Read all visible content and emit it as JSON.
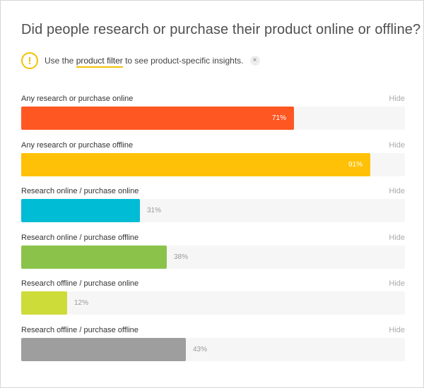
{
  "title": "Did people research or purchase their product online or offline?",
  "notice": {
    "prefix": "Use the",
    "link": "product filter",
    "suffix": "to see product-specific insights.",
    "icon": "warning-circle-icon",
    "close_icon": "close-icon",
    "close_glyph": "×"
  },
  "hide_label": "Hide",
  "chart_data": {
    "type": "bar",
    "orientation": "horizontal",
    "title": "Did people research or purchase their product online or offline?",
    "unit": "%",
    "xlim": [
      0,
      100
    ],
    "categories": [
      "Any research or purchase online",
      "Any research or purchase offline",
      "Research online / purchase online",
      "Research online / purchase offline",
      "Research offline / purchase online",
      "Research offline / purchase offline"
    ],
    "values": [
      71,
      91,
      31,
      38,
      12,
      43
    ],
    "labels": [
      "71%",
      "91%",
      "31%",
      "38%",
      "12%",
      "43%"
    ],
    "colors": [
      "#ff5722",
      "#ffc107",
      "#00bcd4",
      "#8bc34a",
      "#cddc39",
      "#9e9e9e"
    ]
  }
}
